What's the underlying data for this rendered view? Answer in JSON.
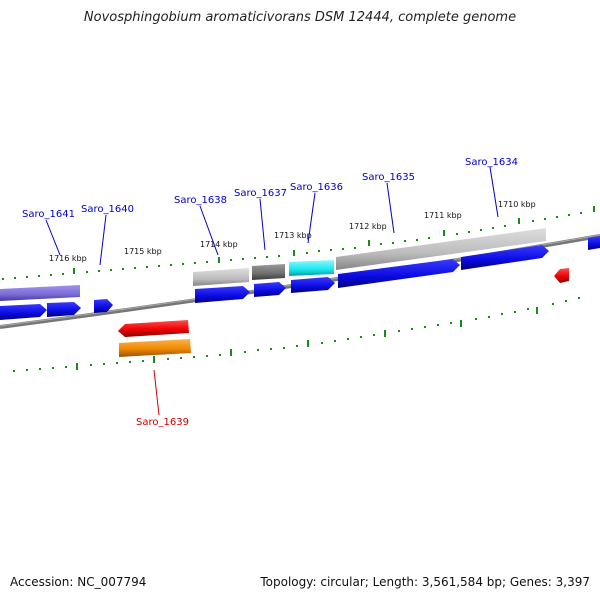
{
  "title": "Novosphingobium aromaticivorans DSM 12444, complete genome",
  "footer": {
    "accession": "Accession: NC_007794",
    "summary": "Topology: circular; Length: 3,561,584 bp; Genes: 3,397"
  },
  "scale_ticks": [
    {
      "id": "1716",
      "label": "1716 kbp"
    },
    {
      "id": "1715",
      "label": "1715 kbp"
    },
    {
      "id": "1714",
      "label": "1714 kbp"
    },
    {
      "id": "1713",
      "label": "1713 kbp"
    },
    {
      "id": "1712",
      "label": "1712 kbp"
    },
    {
      "id": "1711",
      "label": "1711 kbp"
    },
    {
      "id": "1710",
      "label": "1710 kbp"
    }
  ],
  "genes": [
    {
      "id": "saro1641",
      "label": "Saro_1641",
      "strand": "forward",
      "color": "#0000cc"
    },
    {
      "id": "saro1640",
      "label": "Saro_1640",
      "strand": "forward",
      "color": "#0000cc"
    },
    {
      "id": "saro1638",
      "label": "Saro_1638",
      "strand": "forward",
      "color": "#0000cc"
    },
    {
      "id": "saro1637",
      "label": "Saro_1637",
      "strand": "forward",
      "color": "#0000cc"
    },
    {
      "id": "saro1636",
      "label": "Saro_1636",
      "strand": "forward",
      "color": "#0000cc"
    },
    {
      "id": "saro1635",
      "label": "Saro_1635",
      "strand": "forward",
      "color": "#0000cc"
    },
    {
      "id": "saro1634",
      "label": "Saro_1634",
      "strand": "forward",
      "color": "#0000cc"
    },
    {
      "id": "saro1639",
      "label": "Saro_1639",
      "strand": "reverse",
      "color": "#cc0000"
    }
  ],
  "colors": {
    "forward_cds": "#1010e0",
    "reverse_cds": "#ee0000",
    "forward_label": "#0000cc",
    "reverse_label": "#cc0000",
    "backbone": "#777777",
    "tick": "#1a8a1a",
    "feature_lavender": "#7a6ad6",
    "feature_light_gray": "#bcbcbc",
    "feature_dark_gray": "#6e6e6e",
    "feature_cyan": "#19e6ee",
    "feature_orange": "#ee8800"
  }
}
